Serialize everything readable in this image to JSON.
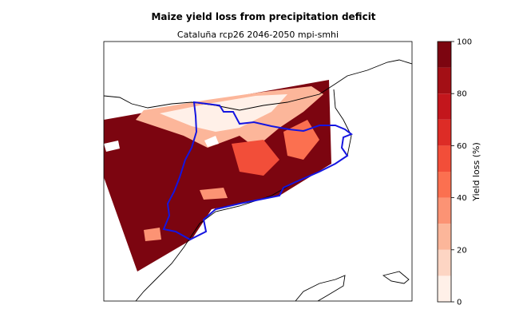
{
  "title": "Maize yield loss from precipitation deficit",
  "subtitle": "Cataluña rcp26 2046-2050 mpi-smhi",
  "colorbar": {
    "label": "Yield loss (%)",
    "levels": [
      0,
      10,
      20,
      30,
      40,
      50,
      60,
      70,
      80,
      90,
      100
    ],
    "colors": [
      "#fff0e8",
      "#fdd5c3",
      "#fcb69a",
      "#fc9374",
      "#fb7050",
      "#f24e39",
      "#dd2c26",
      "#c3161c",
      "#a30f15",
      "#7c0510"
    ],
    "ticks": [
      0,
      20,
      40,
      60,
      80,
      100
    ]
  }
}
